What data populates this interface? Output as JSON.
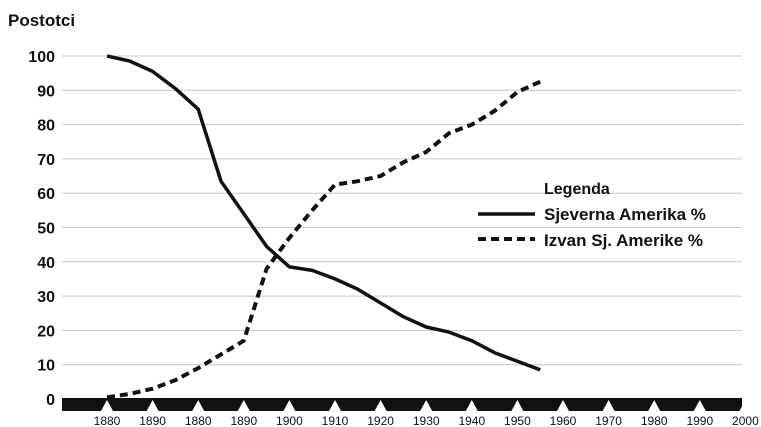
{
  "chart_data": {
    "type": "line",
    "title": "",
    "ylabel": "Postotci",
    "xlabel": "",
    "ylim": [
      0,
      100
    ],
    "yticks": [
      0,
      10,
      20,
      30,
      40,
      50,
      60,
      70,
      80,
      90,
      100
    ],
    "xtick_labels": [
      "1880",
      "1890",
      "1880",
      "1890",
      "1900",
      "1910",
      "1920",
      "1930",
      "1940",
      "1950",
      "1960",
      "1970",
      "1980",
      "1990",
      "2000"
    ],
    "grid": true,
    "legend": {
      "title": "Legenda",
      "position": "right"
    },
    "series": [
      {
        "name": "Sjeverna Amerika %",
        "style": "solid",
        "color": "#111111",
        "points": [
          [
            1.0,
            100
          ],
          [
            1.5,
            98.5
          ],
          [
            2.0,
            95.5
          ],
          [
            2.5,
            90.5
          ],
          [
            3.0,
            84.5
          ],
          [
            3.5,
            63.5
          ],
          [
            4.0,
            54
          ],
          [
            4.5,
            44.5
          ],
          [
            5.0,
            38.5
          ],
          [
            5.5,
            37.5
          ],
          [
            6.0,
            35
          ],
          [
            6.5,
            32
          ],
          [
            7.0,
            28
          ],
          [
            7.5,
            24
          ],
          [
            8.0,
            21
          ],
          [
            8.5,
            19.5
          ],
          [
            9.0,
            17
          ],
          [
            9.5,
            13.5
          ],
          [
            10.0,
            11
          ],
          [
            10.5,
            8.5
          ]
        ]
      },
      {
        "name": "Izvan Sj. Amerike %",
        "style": "dashed",
        "color": "#111111",
        "points": [
          [
            1.0,
            0.5
          ],
          [
            1.5,
            1.5
          ],
          [
            2.0,
            3
          ],
          [
            2.5,
            5.5
          ],
          [
            3.0,
            9
          ],
          [
            3.5,
            13
          ],
          [
            4.0,
            17
          ],
          [
            4.5,
            38
          ],
          [
            5.0,
            47
          ],
          [
            5.5,
            55
          ],
          [
            6.0,
            62.5
          ],
          [
            6.5,
            63.5
          ],
          [
            7.0,
            65
          ],
          [
            7.5,
            69
          ],
          [
            8.0,
            72
          ],
          [
            8.5,
            77.5
          ],
          [
            9.0,
            80
          ],
          [
            9.5,
            84
          ],
          [
            10.0,
            89.5
          ],
          [
            10.5,
            92.5
          ]
        ]
      }
    ]
  }
}
